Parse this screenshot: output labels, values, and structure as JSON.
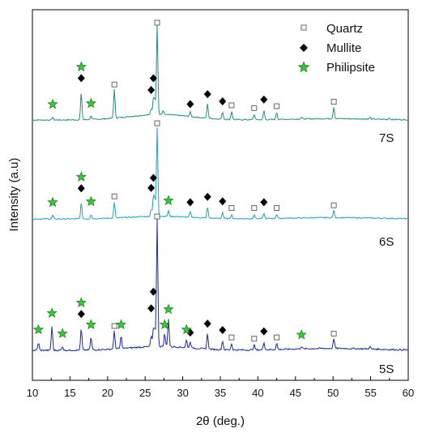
{
  "chart_data": {
    "type": "line",
    "xlabel": "2θ (deg.)",
    "ylabel": "Intensity (a.u)",
    "xlim": [
      10,
      60
    ],
    "xticks": [
      10,
      15,
      20,
      25,
      30,
      35,
      40,
      45,
      50,
      55,
      60
    ],
    "y_ticks_shown": false,
    "legend": {
      "placement": "top-right",
      "entries": [
        {
          "name": "Quartz",
          "marker": "open-square"
        },
        {
          "name": "Mullite",
          "marker": "filled-diamond"
        },
        {
          "name": "Philipsite",
          "marker": "green-star"
        }
      ]
    },
    "colors": {
      "7S": "#1f8f86",
      "6S": "#1ea2c2",
      "5S": "#1b2a9c",
      "philipsite": "#33cc33",
      "mullite": "#000000",
      "quartz": "#666666"
    },
    "series": [
      {
        "name": "7S",
        "baseline": 0.06,
        "peaks": [
          {
            "x": 12.7,
            "h": 0.03
          },
          {
            "x": 16.5,
            "h": 0.3
          },
          {
            "x": 17.8,
            "h": 0.04
          },
          {
            "x": 20.9,
            "h": 0.32
          },
          {
            "x": 25.8,
            "h": 0.07
          },
          {
            "x": 26.1,
            "h": 0.18
          },
          {
            "x": 26.3,
            "h": 0.16
          },
          {
            "x": 26.6,
            "h": 1.0
          },
          {
            "x": 27.4,
            "h": 0.05
          },
          {
            "x": 31.0,
            "h": 0.05
          },
          {
            "x": 33.3,
            "h": 0.16
          },
          {
            "x": 35.3,
            "h": 0.08
          },
          {
            "x": 36.5,
            "h": 0.09
          },
          {
            "x": 39.5,
            "h": 0.06
          },
          {
            "x": 40.8,
            "h": 0.1
          },
          {
            "x": 42.5,
            "h": 0.08
          },
          {
            "x": 45.8,
            "h": 0.02
          },
          {
            "x": 50.1,
            "h": 0.13
          },
          {
            "x": 54.9,
            "h": 0.02
          },
          {
            "x": 57.5,
            "h": 0.02
          }
        ],
        "markers": {
          "philipsite": [
            12.7,
            16.5,
            17.8
          ],
          "mullite": [
            16.5,
            25.8,
            26.1,
            31.0,
            33.3,
            35.3,
            40.8
          ],
          "quartz": [
            20.9,
            26.6,
            36.5,
            39.5,
            42.5,
            50.1
          ]
        }
      },
      {
        "name": "6S",
        "baseline": 0.03,
        "peaks": [
          {
            "x": 12.7,
            "h": 0.04
          },
          {
            "x": 16.5,
            "h": 0.18
          },
          {
            "x": 17.8,
            "h": 0.05
          },
          {
            "x": 20.9,
            "h": 0.18
          },
          {
            "x": 25.8,
            "h": 0.08
          },
          {
            "x": 26.1,
            "h": 0.22
          },
          {
            "x": 26.3,
            "h": 0.18
          },
          {
            "x": 26.6,
            "h": 1.0
          },
          {
            "x": 28.1,
            "h": 0.06
          },
          {
            "x": 31.0,
            "h": 0.06
          },
          {
            "x": 33.3,
            "h": 0.12
          },
          {
            "x": 35.3,
            "h": 0.07
          },
          {
            "x": 36.5,
            "h": 0.05
          },
          {
            "x": 39.5,
            "h": 0.05
          },
          {
            "x": 40.8,
            "h": 0.06
          },
          {
            "x": 42.5,
            "h": 0.05
          },
          {
            "x": 50.1,
            "h": 0.08
          }
        ],
        "markers": {
          "philipsite": [
            12.7,
            16.5,
            17.8,
            28.1
          ],
          "mullite": [
            16.5,
            25.8,
            26.1,
            31.0,
            33.3,
            35.3,
            40.8
          ],
          "quartz": [
            20.9,
            26.6,
            36.5,
            39.5,
            42.5,
            50.1
          ]
        }
      },
      {
        "name": "5S",
        "baseline": 0.03,
        "peaks": [
          {
            "x": 10.8,
            "h": 0.06
          },
          {
            "x": 12.6,
            "h": 0.19
          },
          {
            "x": 14.0,
            "h": 0.03
          },
          {
            "x": 16.5,
            "h": 0.17
          },
          {
            "x": 17.8,
            "h": 0.1
          },
          {
            "x": 20.9,
            "h": 0.14
          },
          {
            "x": 21.8,
            "h": 0.1
          },
          {
            "x": 25.8,
            "h": 0.08
          },
          {
            "x": 26.1,
            "h": 0.14
          },
          {
            "x": 26.3,
            "h": 0.12
          },
          {
            "x": 26.6,
            "h": 1.0
          },
          {
            "x": 27.6,
            "h": 0.1
          },
          {
            "x": 28.1,
            "h": 0.22
          },
          {
            "x": 30.5,
            "h": 0.06
          },
          {
            "x": 31.0,
            "h": 0.05
          },
          {
            "x": 33.3,
            "h": 0.12
          },
          {
            "x": 35.3,
            "h": 0.07
          },
          {
            "x": 36.5,
            "h": 0.05
          },
          {
            "x": 39.5,
            "h": 0.04
          },
          {
            "x": 40.8,
            "h": 0.06
          },
          {
            "x": 42.5,
            "h": 0.05
          },
          {
            "x": 45.8,
            "h": 0.02
          },
          {
            "x": 50.1,
            "h": 0.08
          },
          {
            "x": 54.9,
            "h": 0.02
          }
        ],
        "markers": {
          "philipsite": [
            10.8,
            12.6,
            14.0,
            16.5,
            17.8,
            21.8,
            27.6,
            28.1,
            30.5,
            45.8
          ],
          "mullite": [
            16.5,
            25.8,
            26.1,
            31.0,
            33.3,
            35.3,
            40.8
          ],
          "quartz": [
            20.9,
            26.6,
            36.5,
            39.5,
            42.5,
            50.1
          ]
        }
      }
    ]
  }
}
